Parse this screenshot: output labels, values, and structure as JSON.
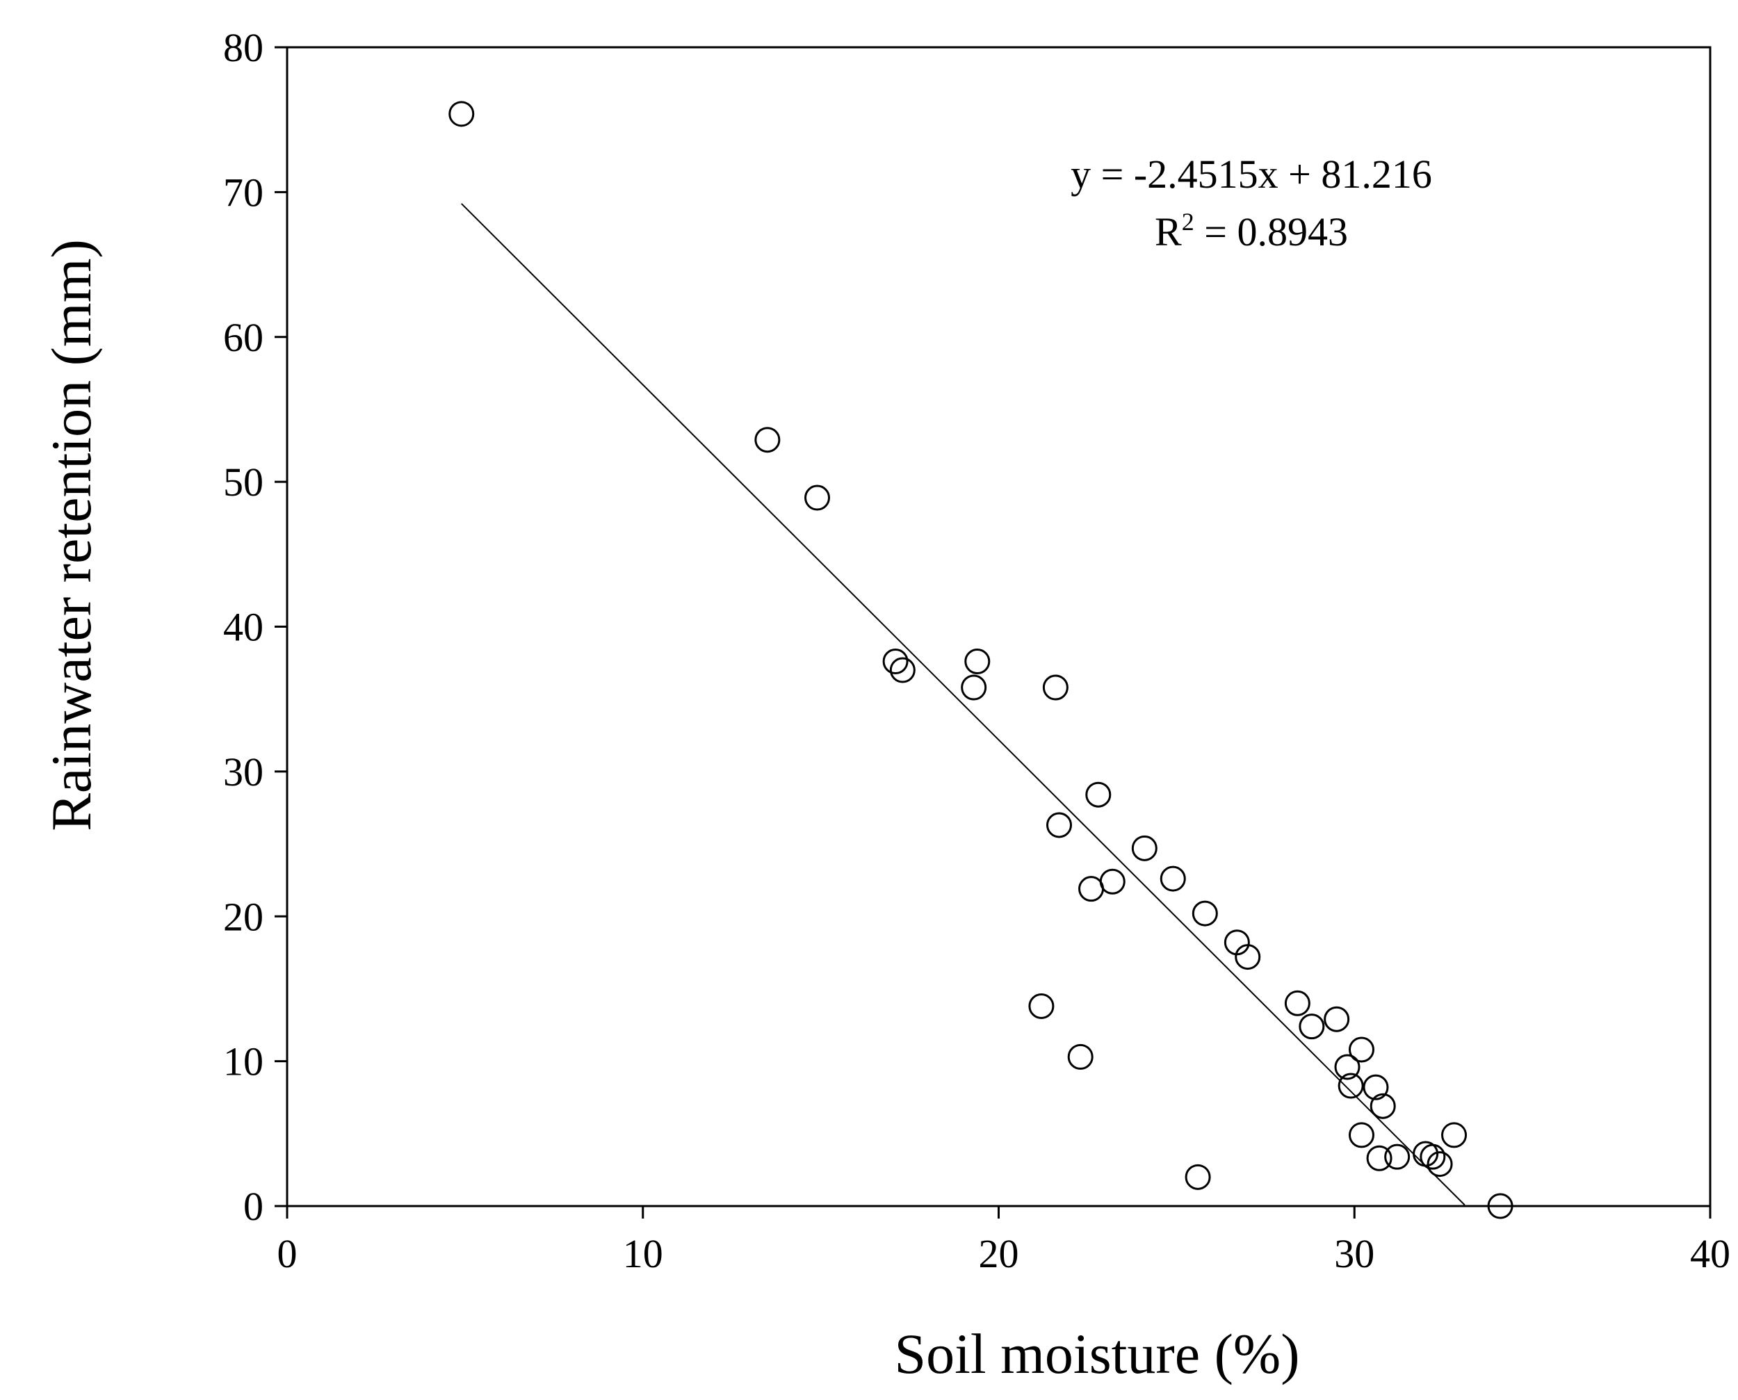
{
  "chart_data": {
    "type": "scatter",
    "title": "",
    "xlabel": "Soil moisture (%)",
    "ylabel": "Rainwater retention (mm)",
    "xlim": [
      0,
      40
    ],
    "ylim": [
      0,
      80
    ],
    "xticks": [
      0,
      10,
      20,
      30,
      40
    ],
    "yticks": [
      0,
      10,
      20,
      30,
      40,
      50,
      60,
      70,
      80
    ],
    "xtick_labels": [
      "0",
      "10",
      "20",
      "30",
      "40"
    ],
    "ytick_labels": [
      "0",
      "10",
      "20",
      "30",
      "40",
      "50",
      "60",
      "70",
      "80"
    ],
    "grid": false,
    "legend": "none",
    "marker": "open-circle",
    "series": [
      {
        "points": [
          [
            4.9,
            75.4
          ],
          [
            13.5,
            52.9
          ],
          [
            14.9,
            48.9
          ],
          [
            17.1,
            37.6
          ],
          [
            17.3,
            37.0
          ],
          [
            19.4,
            37.6
          ],
          [
            19.3,
            35.8
          ],
          [
            21.6,
            35.8
          ],
          [
            21.7,
            26.3
          ],
          [
            22.8,
            28.4
          ],
          [
            22.6,
            21.9
          ],
          [
            23.2,
            22.4
          ],
          [
            24.1,
            24.7
          ],
          [
            24.9,
            22.6
          ],
          [
            25.8,
            20.2
          ],
          [
            26.7,
            18.2
          ],
          [
            27.0,
            17.2
          ],
          [
            21.2,
            13.8
          ],
          [
            22.3,
            10.3
          ],
          [
            25.6,
            2.0
          ],
          [
            28.4,
            14.0
          ],
          [
            28.8,
            12.4
          ],
          [
            29.5,
            12.9
          ],
          [
            30.2,
            10.8
          ],
          [
            29.8,
            9.6
          ],
          [
            29.9,
            8.3
          ],
          [
            30.6,
            8.2
          ],
          [
            30.8,
            6.9
          ],
          [
            30.2,
            4.9
          ],
          [
            30.7,
            3.3
          ],
          [
            31.2,
            3.4
          ],
          [
            32.0,
            3.6
          ],
          [
            32.2,
            3.4
          ],
          [
            32.4,
            2.9
          ],
          [
            32.8,
            4.9
          ],
          [
            34.1,
            0.0
          ]
        ]
      }
    ],
    "trendline": {
      "slope": -2.4515,
      "intercept": 81.216,
      "x_range": [
        4.9,
        33.1
      ]
    },
    "annotations": {
      "equation": "y = -2.4515x + 81.216",
      "r2_label": "R",
      "r2_sup": "2",
      "r2_value": " = 0.8943"
    }
  }
}
